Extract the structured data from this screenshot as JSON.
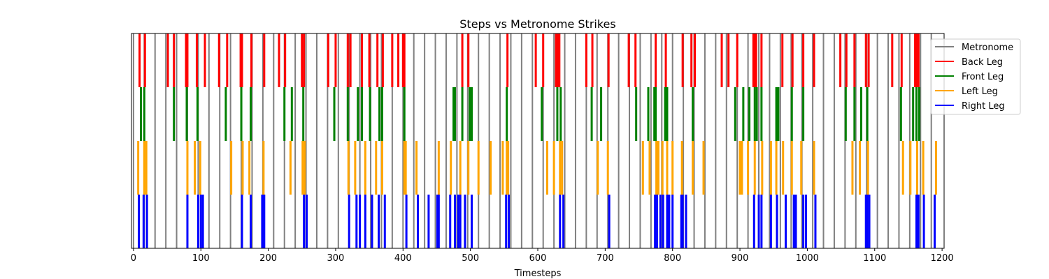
{
  "chart_data": {
    "type": "event-plot",
    "title": "Steps vs Metronome Strikes",
    "xlabel": "Timesteps",
    "ylabel": "",
    "xlim": [
      -3,
      1203
    ],
    "xticks": [
      0,
      100,
      200,
      300,
      400,
      500,
      600,
      700,
      800,
      900,
      1000,
      1100,
      1200
    ],
    "legend_position": "upper-right",
    "grid": false,
    "metronome": {
      "name": "Metronome",
      "color": "#808080",
      "y_range": [
        0,
        1
      ],
      "times": [
        0,
        16,
        32,
        48,
        64,
        80,
        96,
        112,
        128,
        144,
        160,
        176,
        192,
        208,
        224,
        240,
        256,
        272,
        288,
        304,
        320,
        336,
        352,
        368,
        384,
        400,
        416,
        432,
        448,
        464,
        480,
        496,
        512,
        528,
        544,
        560,
        576,
        592,
        608,
        624,
        640,
        656,
        672,
        688,
        704,
        720,
        736,
        752,
        768,
        784,
        800,
        816,
        832,
        848,
        864,
        880,
        896,
        912,
        928,
        944,
        960,
        976,
        992,
        1008,
        1024,
        1040,
        1056,
        1072,
        1088,
        1104,
        1120,
        1136,
        1152,
        1168,
        1184
      ]
    },
    "series": [
      {
        "name": "Back Leg",
        "color": "#ff0000",
        "y_range": [
          0.75,
          1.0
        ],
        "times": [
          9,
          17,
          51,
          60,
          78,
          80,
          94,
          106,
          127,
          139,
          159,
          161,
          175,
          194,
          216,
          225,
          250,
          253,
          289,
          300,
          318,
          322,
          339,
          350,
          362,
          370,
          384,
          393,
          400,
          402,
          488,
          497,
          555,
          597,
          608,
          627,
          630,
          632,
          672,
          681,
          705,
          735,
          745,
          775,
          790,
          815,
          828,
          833,
          873,
          883,
          896,
          920,
          922,
          924,
          932,
          963,
          978,
          994,
          1010,
          1049,
          1058,
          1070,
          1087,
          1091,
          1126,
          1140,
          1160,
          1162,
          1165
        ]
      },
      {
        "name": "Front Leg",
        "color": "#008000",
        "y_range": [
          0.5,
          0.75
        ],
        "times": [
          11,
          16,
          60,
          79,
          95,
          137,
          160,
          174,
          224,
          235,
          252,
          298,
          318,
          333,
          339,
          351,
          365,
          369,
          402,
          475,
          477,
          488,
          499,
          502,
          554,
          606,
          629,
          634,
          680,
          694,
          746,
          764,
          773,
          775,
          789,
          792,
          830,
          893,
          905,
          914,
          922,
          925,
          932,
          954,
          957,
          977,
          994,
          1057,
          1070,
          1080,
          1089,
          1139,
          1157,
          1162,
          1166
        ]
      },
      {
        "name": "Left Leg",
        "color": "#ffa500",
        "y_range": [
          0.25,
          0.5
        ],
        "times": [
          7,
          16,
          19,
          80,
          91,
          99,
          145,
          162,
          172,
          193,
          233,
          251,
          254,
          319,
          329,
          344,
          360,
          369,
          402,
          404,
          420,
          453,
          471,
          485,
          497,
          512,
          530,
          548,
          554,
          556,
          614,
          624,
          633,
          636,
          689,
          704,
          756,
          766,
          776,
          779,
          785,
          792,
          800,
          814,
          830,
          846,
          900,
          903,
          912,
          922,
          933,
          946,
          954,
          964,
          977,
          991,
          1010,
          1067,
          1078,
          1090,
          1142,
          1153,
          1163,
          1172,
          1191
        ]
      },
      {
        "name": "Right Leg",
        "color": "#0000ff",
        "y_range": [
          0.0,
          0.25
        ],
        "times": [
          8,
          15,
          20,
          80,
          96,
          100,
          103,
          161,
          174,
          191,
          194,
          253,
          257,
          320,
          331,
          336,
          344,
          354,
          364,
          373,
          405,
          422,
          438,
          451,
          453,
          470,
          477,
          482,
          485,
          492,
          502,
          553,
          557,
          633,
          638,
          706,
          774,
          777,
          782,
          786,
          792,
          795,
          800,
          813,
          815,
          820,
          921,
          928,
          932,
          946,
          955,
          968,
          980,
          983,
          994,
          998,
          1012,
          1087,
          1089,
          1092,
          1162,
          1165,
          1173,
          1189
        ]
      }
    ]
  }
}
